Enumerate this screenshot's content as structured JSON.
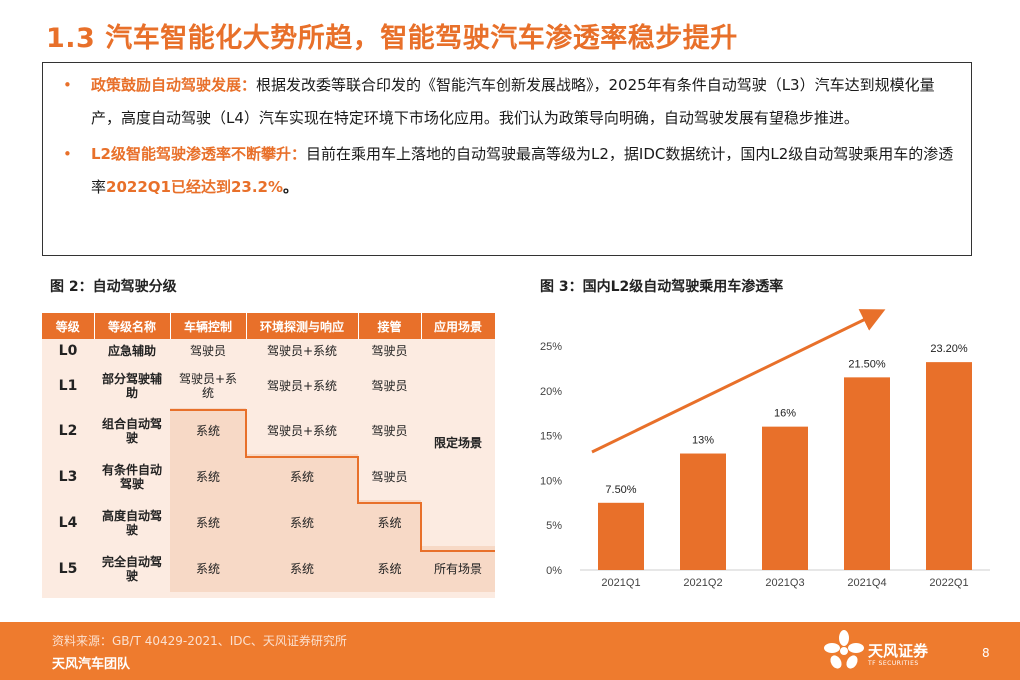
{
  "title": "1.3 汽车智能化大势所趋，智能驾驶汽车渗透率稳步提升",
  "summary": {
    "bullet_symbol": "•",
    "p1": {
      "lead": "政策鼓励自动驾驶发展：",
      "text": "根据发改委等联合印发的《智能汽车创新发展战略》，2025年有条件自动驾驶（L3）汽车达到规模化量产，高度自动驾驶（L4）汽车实现在特定环境下市场化应用。我们认为政策导向明确，自动驾驶发展有望稳步推进。"
    },
    "p2": {
      "lead": "L2级智能驾驶渗透率不断攀升：",
      "text": "目前在乘用车上落地的自动驾驶最高等级为L2，据IDC数据统计，国内L2级自动驾驶乘用车的渗透率",
      "highlight": "2022Q1已经达到23.2%",
      "tail": "。"
    }
  },
  "fig2": {
    "title": "图 2：自动驾驶分级",
    "headers": [
      "等级",
      "等级名称",
      "车辆控制",
      "环境探测与响应",
      "接管",
      "应用场景"
    ],
    "rows": [
      [
        "L0",
        "应急辅助",
        "驾驶员",
        "驾驶员+系统",
        "驾驶员"
      ],
      [
        "L1",
        "部分驾驶辅助",
        "驾驶员+系统",
        "驾驶员+系统",
        "驾驶员"
      ],
      [
        "L2",
        "组合自动驾驶",
        "系统",
        "驾驶员+系统",
        "驾驶员"
      ],
      [
        "L3",
        "有条件自动驾驶",
        "系统",
        "系统",
        "驾驶员"
      ],
      [
        "L4",
        "高度自动驾驶",
        "系统",
        "系统",
        "系统"
      ],
      [
        "L5",
        "完全自动驾驶",
        "系统",
        "系统",
        "系统",
        "所有场景"
      ]
    ],
    "scene_limited": "限定场景"
  },
  "fig3": {
    "title": "图 3：国内L2级自动驾驶乘用车渗透率"
  },
  "chart_data": {
    "type": "bar",
    "categories": [
      "2021Q1",
      "2021Q2",
      "2021Q3",
      "2021Q4",
      "2022Q1"
    ],
    "values": [
      7.5,
      13,
      16,
      21.5,
      23.2
    ],
    "data_labels": [
      "7.50%",
      "13%",
      "16%",
      "21.50%",
      "23.20%"
    ],
    "yticks": [
      "0%",
      "5%",
      "10%",
      "15%",
      "20%",
      "25%"
    ],
    "ylim": [
      0,
      25
    ],
    "bar_color": "#e8702a",
    "trend_arrow": true,
    "grid": false
  },
  "footer": {
    "source": "资料来源：GB/T 40429-2021、IDC、天风证券研究所",
    "team": "天风汽车团队",
    "logo_cn": "天风证券",
    "logo_en": "TF SECURITIES",
    "page": "8"
  },
  "colors": {
    "accent": "#e8702a",
    "footer": "#ee7b2e",
    "table_bg": "#fcebe1"
  }
}
